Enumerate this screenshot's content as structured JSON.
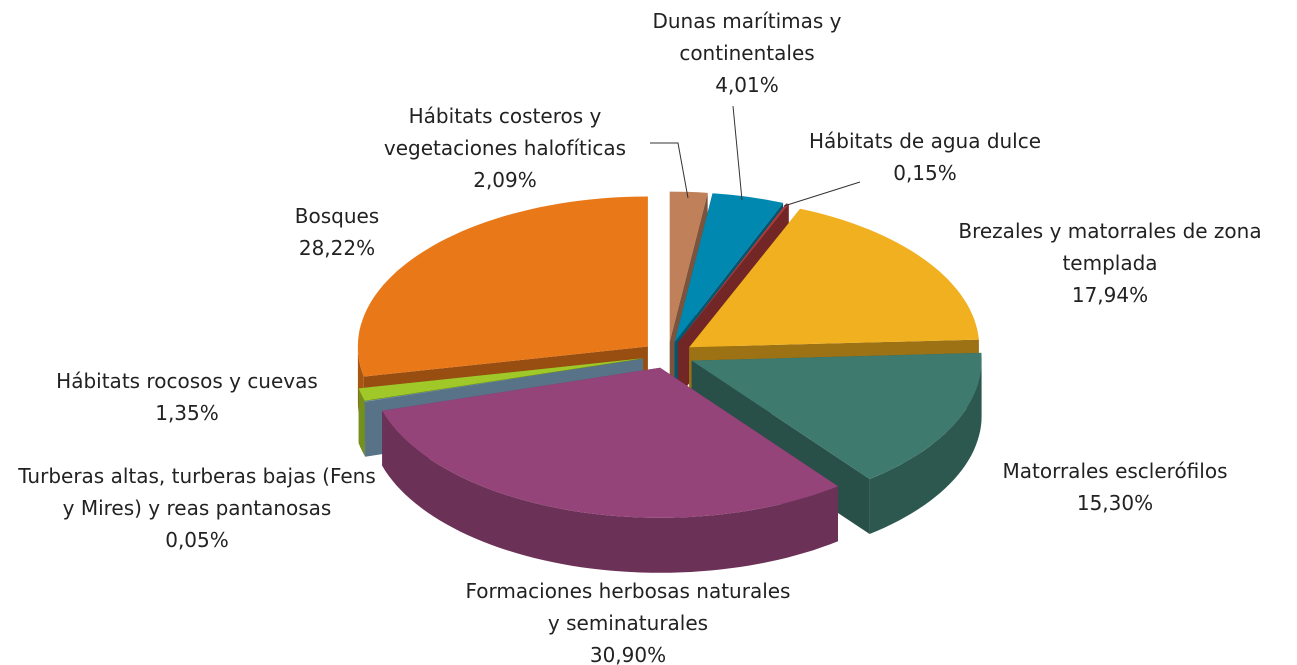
{
  "chart_data": {
    "type": "pie",
    "categories": [
      "Hábitats costeros y vegetaciones halofíticas",
      "Dunas marítimas y continentales",
      "Hábitats de agua dulce",
      "Brezales y matorrales de zona templada",
      "Matorrales esclerófilos",
      "Formaciones herbosas naturales y seminaturales",
      "Turberas altas, turberas bajas (Fens y Mires) y reas pantanosas",
      "Hábitats rocosos y cuevas",
      "Bosques"
    ],
    "values": [
      2.09,
      4.01,
      0.15,
      17.94,
      15.3,
      30.9,
      0.05,
      1.35,
      28.22
    ],
    "value_labels": [
      "2,09%",
      "4,01%",
      "0,15%",
      "17,94%",
      "15,30%",
      "30,90%",
      "0,05%",
      "1,35%",
      "28,22%"
    ],
    "colors": [
      "#c0805a",
      "#0088b0",
      "#b03a3a",
      "#f0b020",
      "#3e7a6e",
      "#944479",
      "#88b0d0",
      "#a0c828",
      "#e87818"
    ]
  }
}
